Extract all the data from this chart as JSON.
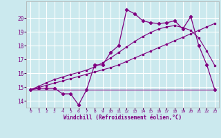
{
  "title": "",
  "xlabel": "Windchill (Refroidissement éolien,°C)",
  "background_color": "#cbe9ee",
  "grid_color": "#ffffff",
  "line_color": "#800080",
  "xlim": [
    -0.5,
    23.5
  ],
  "ylim": [
    13.5,
    21.2
  ],
  "xticks": [
    0,
    1,
    2,
    3,
    4,
    5,
    6,
    7,
    8,
    9,
    10,
    11,
    12,
    13,
    14,
    15,
    16,
    17,
    18,
    19,
    20,
    21,
    22,
    23
  ],
  "yticks": [
    14,
    15,
    16,
    17,
    18,
    19,
    20
  ],
  "series1_y": [
    14.8,
    14.9,
    14.9,
    14.9,
    14.5,
    14.5,
    13.7,
    14.8,
    16.6,
    16.6,
    17.5,
    18.0,
    20.6,
    20.3,
    19.8,
    19.65,
    19.6,
    19.65,
    19.8,
    19.2,
    20.1,
    18.0,
    16.6,
    14.8
  ],
  "series2_y": [
    14.8,
    14.8
  ],
  "series2_x": [
    0,
    23
  ],
  "series3_y": [
    14.8,
    14.96,
    15.12,
    15.28,
    15.44,
    15.6,
    15.76,
    15.92,
    16.08,
    16.24,
    16.4,
    16.6,
    16.85,
    17.1,
    17.35,
    17.6,
    17.85,
    18.1,
    18.35,
    18.6,
    18.85,
    19.1,
    19.35,
    19.6
  ],
  "series4_y": [
    14.8,
    15.05,
    15.3,
    15.55,
    15.72,
    15.9,
    16.05,
    16.22,
    16.45,
    16.75,
    17.1,
    17.5,
    17.9,
    18.3,
    18.65,
    18.95,
    19.2,
    19.35,
    19.45,
    19.3,
    19.1,
    18.55,
    17.6,
    16.55
  ]
}
